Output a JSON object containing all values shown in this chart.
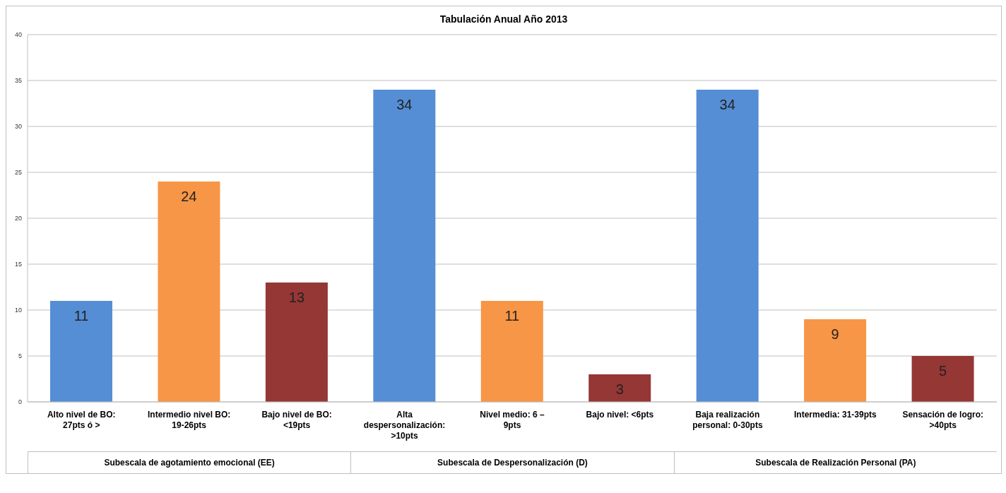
{
  "chart_data": {
    "type": "bar",
    "title": "Tabulación Anual Año 2013",
    "categories": [
      "Alto nivel de BO: 27pts ó >",
      "Intermedio nivel BO: 19-26pts",
      "Bajo nivel de BO: <19pts",
      "Alta despersonalización: >10pts",
      "Nivel medio:    6 – 9pts",
      "Bajo nivel: <6pts",
      "Baja realización personal: 0-30pts",
      "Intermedia: 31-39pts",
      "Sensación de logro: >40pts"
    ],
    "values": [
      11,
      24,
      13,
      34,
      11,
      3,
      34,
      9,
      5
    ],
    "colors": [
      "#558ed5",
      "#f79646",
      "#953735",
      "#558ed5",
      "#f79646",
      "#953735",
      "#558ed5",
      "#f79646",
      "#953735"
    ],
    "ylim": [
      0,
      40
    ],
    "yticks": [
      0,
      5,
      10,
      15,
      20,
      25,
      30,
      35,
      40
    ],
    "grid": "y",
    "data_labels": true,
    "annotations": [
      "Subescala de agotamiento emocional (EE)",
      "Subescala de Despersonalización (D)",
      "Subescala de Realización Personal (PA)"
    ]
  }
}
